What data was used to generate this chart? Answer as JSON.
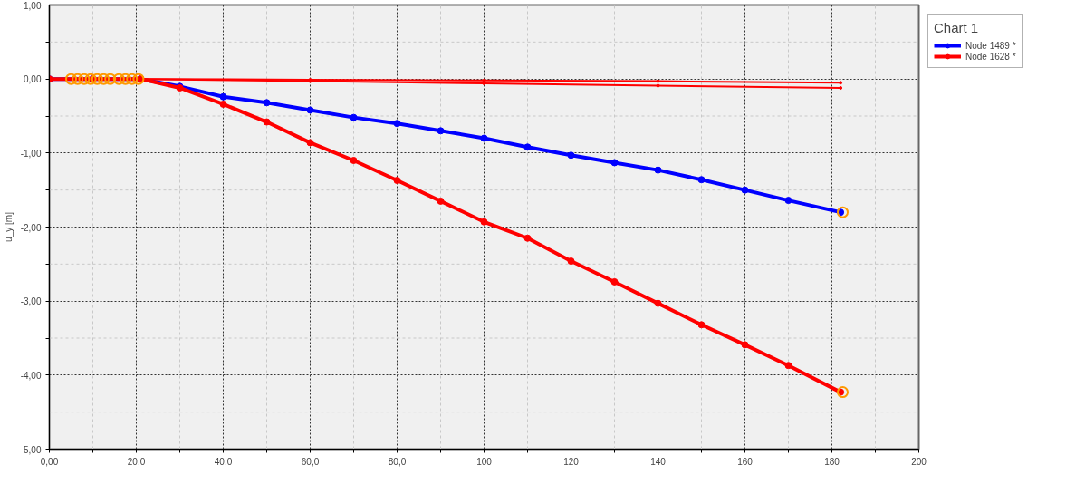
{
  "chart_data": {
    "type": "line",
    "ylabel": "u_y [m]",
    "legend_title": "Chart 1",
    "legend": "top right",
    "grid": true,
    "marker": "circle",
    "line_style": "solid",
    "xlim": [
      0,
      200
    ],
    "ylim": [
      -5,
      1
    ],
    "xticks": [
      {
        "value": 0,
        "label": "0,00"
      },
      {
        "value": 10,
        "label": null
      },
      {
        "value": 20,
        "label": "20,0"
      },
      {
        "value": 30,
        "label": null
      },
      {
        "value": 40,
        "label": "40,0"
      },
      {
        "value": 50,
        "label": null
      },
      {
        "value": 60,
        "label": "60,0"
      },
      {
        "value": 70,
        "label": null
      },
      {
        "value": 80,
        "label": "80,0"
      },
      {
        "value": 90,
        "label": null
      },
      100,
      {
        "value": 110,
        "label": null
      },
      120,
      {
        "value": 130,
        "label": null
      },
      140,
      {
        "value": 150,
        "label": null
      },
      160,
      {
        "value": 170,
        "label": null
      },
      180,
      {
        "value": 190,
        "label": null
      },
      200
    ],
    "yticks": [
      {
        "value": 1,
        "label": "1,00"
      },
      {
        "value": 0.5,
        "label": null
      },
      {
        "value": 0,
        "label": "0,00"
      },
      {
        "value": -0.5,
        "label": null
      },
      {
        "value": -1,
        "label": "-1,00"
      },
      {
        "value": -1.5,
        "label": null
      },
      {
        "value": -2,
        "label": "-2,00"
      },
      {
        "value": -2.5,
        "label": null
      },
      {
        "value": -3,
        "label": "-3,00"
      },
      {
        "value": -3.5,
        "label": null
      },
      {
        "value": -4,
        "label": "-4,00"
      },
      {
        "value": -4.5,
        "label": null
      },
      {
        "value": -5,
        "label": "-5,00"
      }
    ],
    "series": [
      {
        "name": "Node 1489 *",
        "color": "#0000ff",
        "x": [
          0,
          10,
          21,
          30,
          40,
          50,
          60,
          70,
          80,
          90,
          100,
          110,
          120,
          130,
          140,
          150,
          160,
          170,
          182
        ],
        "values": [
          0,
          0,
          0,
          -0.1,
          -0.24,
          -0.32,
          -0.42,
          -0.52,
          -0.6,
          -0.7,
          -0.8,
          -0.92,
          -1.03,
          -1.13,
          -1.23,
          -1.36,
          -1.5,
          -1.64,
          -1.8
        ]
      },
      {
        "name": "Node 1628 *",
        "color": "#ff0000",
        "x": [
          0,
          10,
          21,
          30,
          40,
          50,
          60,
          70,
          80,
          90,
          100,
          110,
          120,
          130,
          140,
          150,
          160,
          170,
          182
        ],
        "values": [
          0,
          0,
          0,
          -0.12,
          -0.34,
          -0.58,
          -0.86,
          -1.1,
          -1.37,
          -1.65,
          -1.93,
          -2.15,
          -2.46,
          -2.74,
          -3.03,
          -3.32,
          -3.59,
          -3.87,
          -4.23
        ]
      },
      {
        "color": "#ff0000",
        "x": [
          0,
          21,
          60,
          100,
          140,
          182
        ],
        "values": [
          0,
          0,
          -0.01,
          -0.02,
          -0.03,
          -0.05
        ]
      },
      {
        "color": "#ff0000",
        "x": [
          0,
          21,
          60,
          100,
          140,
          182
        ],
        "values": [
          0,
          0,
          -0.03,
          -0.06,
          -0.09,
          -0.12
        ]
      },
      {
        "type": "scatter",
        "color": "#ff9900",
        "x": [
          5,
          6.5,
          8,
          9.5,
          11,
          12.5,
          14,
          16,
          17.5,
          19,
          20.5,
          182.5,
          182.5
        ],
        "values": [
          0,
          0,
          0,
          0,
          0,
          0,
          0,
          0,
          0,
          0,
          0,
          -1.8,
          -4.23
        ]
      }
    ]
  }
}
